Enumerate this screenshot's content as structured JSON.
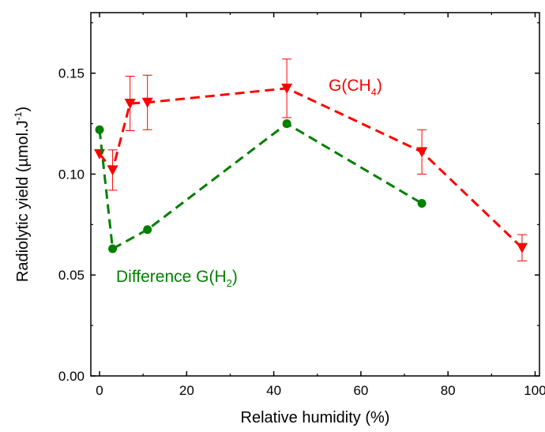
{
  "chart_data": {
    "type": "line",
    "xlabel": "Relative humidity (%)",
    "ylabel": "Radiolytic yield (µmol.J",
    "ylabel_sup": "-1",
    "ylabel_end": ")",
    "xlim": [
      -2,
      101
    ],
    "ylim": [
      0,
      0.18
    ],
    "xticks": [
      0,
      20,
      40,
      60,
      80,
      100
    ],
    "yticks": [
      0.0,
      0.05,
      0.1,
      0.15
    ],
    "xtick_labels": [
      "0",
      "20",
      "40",
      "60",
      "80",
      "100"
    ],
    "ytick_labels": [
      "0.00",
      "0.05",
      "0.10",
      "0.15"
    ],
    "grid": false,
    "series": [
      {
        "label_main": "G(CH",
        "label_sub": "4",
        "label_end": ")",
        "color": "#ff0000",
        "marker": "triangle-down",
        "x": [
          0,
          3,
          7,
          11,
          43,
          74,
          97
        ],
        "y": [
          0.11,
          0.102,
          0.135,
          0.1355,
          0.1425,
          0.111,
          0.0635
        ],
        "err": [
          0.0,
          0.01,
          0.0135,
          0.0135,
          0.0145,
          0.011,
          0.0065
        ]
      },
      {
        "label_main": "Difference G(H",
        "label_sub": "2",
        "label_end": ")",
        "color": "#008000",
        "marker": "circle",
        "x": [
          0,
          3,
          11,
          43,
          74
        ],
        "y": [
          0.122,
          0.063,
          0.0725,
          0.125,
          0.0855
        ]
      }
    ]
  }
}
